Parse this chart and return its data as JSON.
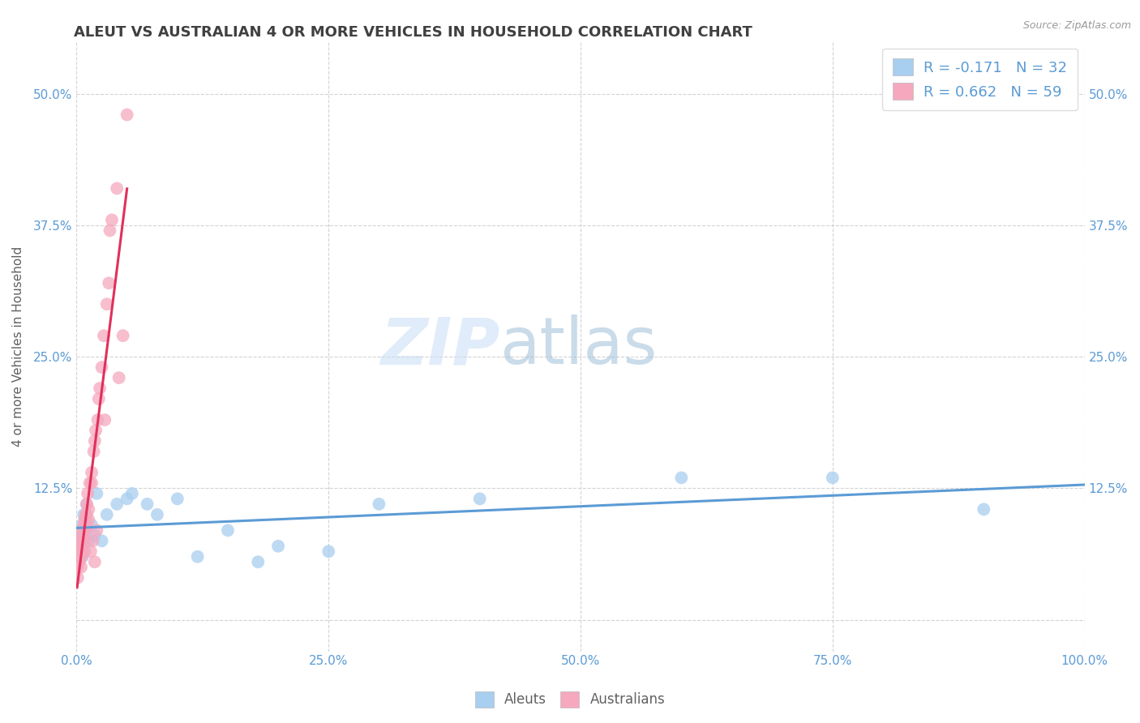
{
  "title": "ALEUT VS AUSTRALIAN 4 OR MORE VEHICLES IN HOUSEHOLD CORRELATION CHART",
  "source_text": "Source: ZipAtlas.com",
  "ylabel": "4 or more Vehicles in Household",
  "xlabel": "",
  "watermark_zip": "ZIP",
  "watermark_atlas": "atlas",
  "xlim": [
    0.0,
    1.0
  ],
  "ylim": [
    -0.03,
    0.55
  ],
  "xticks": [
    0.0,
    0.25,
    0.5,
    0.75,
    1.0
  ],
  "xticklabels": [
    "0.0%",
    "25.0%",
    "50.0%",
    "75.0%",
    "100.0%"
  ],
  "yticks": [
    0.0,
    0.125,
    0.25,
    0.375,
    0.5
  ],
  "yticklabels_left": [
    "",
    "12.5%",
    "25.0%",
    "37.5%",
    "50.0%"
  ],
  "yticklabels_right": [
    "",
    "12.5%",
    "25.0%",
    "37.5%",
    "50.0%"
  ],
  "aleut_color": "#a8cef0",
  "australian_color": "#f5a8be",
  "trendline_aleut_color": "#5b9bd5",
  "trendline_australian_color": "#e0305a",
  "legend_R_aleut": "R = -0.171",
  "legend_N_aleut": "N = 32",
  "legend_R_australian": "R = 0.662",
  "legend_N_australian": "N = 59",
  "aleut_x": [
    0.001,
    0.002,
    0.003,
    0.004,
    0.005,
    0.006,
    0.007,
    0.008,
    0.009,
    0.01,
    0.012,
    0.015,
    0.018,
    0.02,
    0.025,
    0.03,
    0.04,
    0.05,
    0.055,
    0.07,
    0.08,
    0.1,
    0.12,
    0.15,
    0.18,
    0.2,
    0.25,
    0.3,
    0.4,
    0.6,
    0.75,
    0.9
  ],
  "aleut_y": [
    0.07,
    0.075,
    0.065,
    0.08,
    0.09,
    0.06,
    0.1,
    0.085,
    0.095,
    0.11,
    0.075,
    0.09,
    0.08,
    0.12,
    0.075,
    0.1,
    0.11,
    0.115,
    0.12,
    0.11,
    0.1,
    0.115,
    0.06,
    0.085,
    0.055,
    0.07,
    0.065,
    0.11,
    0.115,
    0.135,
    0.135,
    0.105
  ],
  "australian_x": [
    0.0005,
    0.001,
    0.0012,
    0.0015,
    0.002,
    0.0022,
    0.0025,
    0.003,
    0.003,
    0.0035,
    0.004,
    0.004,
    0.0045,
    0.005,
    0.005,
    0.005,
    0.005,
    0.006,
    0.006,
    0.006,
    0.007,
    0.007,
    0.008,
    0.008,
    0.008,
    0.008,
    0.009,
    0.009,
    0.009,
    0.01,
    0.01,
    0.01,
    0.011,
    0.012,
    0.012,
    0.013,
    0.014,
    0.015,
    0.015,
    0.016,
    0.017,
    0.018,
    0.018,
    0.019,
    0.02,
    0.021,
    0.022,
    0.023,
    0.025,
    0.027,
    0.028,
    0.03,
    0.032,
    0.033,
    0.035,
    0.04,
    0.042,
    0.046,
    0.05
  ],
  "australian_y": [
    0.06,
    0.04,
    0.05,
    0.06,
    0.07,
    0.06,
    0.055,
    0.07,
    0.06,
    0.065,
    0.075,
    0.065,
    0.05,
    0.08,
    0.07,
    0.065,
    0.06,
    0.085,
    0.07,
    0.065,
    0.09,
    0.08,
    0.095,
    0.085,
    0.075,
    0.065,
    0.1,
    0.09,
    0.085,
    0.11,
    0.1,
    0.09,
    0.12,
    0.105,
    0.095,
    0.13,
    0.065,
    0.14,
    0.13,
    0.075,
    0.16,
    0.055,
    0.17,
    0.18,
    0.085,
    0.19,
    0.21,
    0.22,
    0.24,
    0.27,
    0.19,
    0.3,
    0.32,
    0.37,
    0.38,
    0.41,
    0.23,
    0.27,
    0.48
  ],
  "background_color": "#ffffff",
  "grid_color": "#c8c8c8",
  "title_color": "#404040",
  "axis_label_color": "#606060",
  "tick_label_color": "#5b9bd5"
}
